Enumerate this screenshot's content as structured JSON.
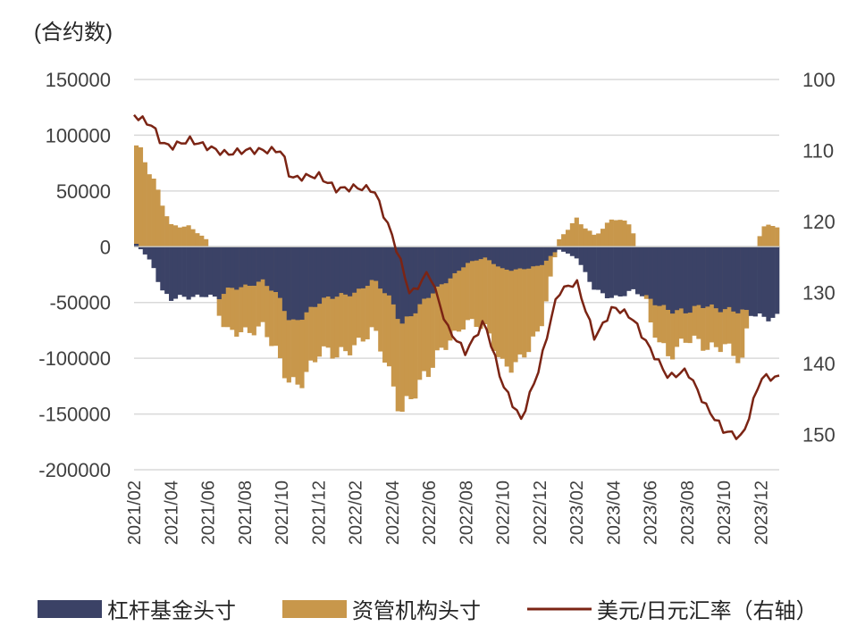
{
  "chart_data": {
    "type": "bar",
    "title": "",
    "left_axis_unit": "(合约数)",
    "left_axis": {
      "ticks": [
        150000,
        100000,
        50000,
        0,
        -50000,
        -100000,
        -150000,
        -200000
      ],
      "tick_labels": [
        "150000",
        "100000",
        "50000",
        "0",
        "-50000",
        "-100000",
        "-150000",
        "-200000"
      ],
      "range": [
        -200000,
        150000
      ]
    },
    "right_axis": {
      "ticks": [
        100,
        110,
        120,
        130,
        140,
        150
      ],
      "tick_labels": [
        "100",
        "110",
        "120",
        "130",
        "140",
        "150"
      ],
      "range": [
        100,
        155
      ],
      "inverted": true
    },
    "x_tick_labels": [
      "2021/02",
      "2021/04",
      "2021/06",
      "2021/08",
      "2021/10",
      "2021/12",
      "2022/02",
      "2022/04",
      "2022/06",
      "2022/08",
      "2022/10",
      "2022/12",
      "2023/02",
      "2023/04",
      "2023/06",
      "2023/08",
      "2023/10",
      "2023/12"
    ],
    "colors": {
      "leveraged": "#3b4266",
      "asset_manager": "#c8974b",
      "usdjpy": "#7b2414",
      "grid": "#d9d9d9",
      "axis_text": "#404040"
    },
    "series": [
      {
        "name": "杠杆基金头寸",
        "type": "bar",
        "axis": "left",
        "points": [
          [
            "2021/02",
            5000
          ],
          [
            "2021/03",
            -15000
          ],
          [
            "2021/03.5",
            -40000
          ],
          [
            "2021/04",
            -48000
          ],
          [
            "2021/05",
            -45000
          ],
          [
            "2021/06",
            -42000
          ],
          [
            "2021/06.5",
            -48000
          ],
          [
            "2021/07",
            -40000
          ],
          [
            "2021/08",
            -35000
          ],
          [
            "2021/09",
            -30000
          ],
          [
            "2021/10",
            -50000
          ],
          [
            "2021/10.5",
            -70000
          ],
          [
            "2021/11",
            -62000
          ],
          [
            "2021/12",
            -50000
          ],
          [
            "2022/01",
            -45000
          ],
          [
            "2022/02",
            -40000
          ],
          [
            "2022/03",
            -30000
          ],
          [
            "2022/04",
            -50000
          ],
          [
            "2022/04.5",
            -68000
          ],
          [
            "2022/05",
            -60000
          ],
          [
            "2022/06",
            -45000
          ],
          [
            "2022/07",
            -30000
          ],
          [
            "2022/08",
            -15000
          ],
          [
            "2022/09",
            -10000
          ],
          [
            "2022/10",
            -20000
          ],
          [
            "2022/11",
            -20000
          ],
          [
            "2022/12",
            -18000
          ],
          [
            "2022/12.5",
            -10000
          ],
          [
            "2023/01",
            -2000
          ],
          [
            "2023/02",
            -10000
          ],
          [
            "2023/03",
            -40000
          ],
          [
            "2023/04",
            -45000
          ],
          [
            "2023/05",
            -40000
          ],
          [
            "2023/06",
            -48000
          ],
          [
            "2023/07",
            -55000
          ],
          [
            "2023/08",
            -60000
          ],
          [
            "2023/09",
            -52000
          ],
          [
            "2023/10",
            -55000
          ],
          [
            "2023/11",
            -60000
          ],
          [
            "2023/12",
            -62000
          ]
        ]
      },
      {
        "name": "资管机构头寸",
        "type": "bar",
        "axis": "left",
        "points": [
          [
            "2021/02",
            95000
          ],
          [
            "2021/03",
            60000
          ],
          [
            "2021/03.5",
            40000
          ],
          [
            "2021/04",
            20000
          ],
          [
            "2021/05",
            18000
          ],
          [
            "2021/06",
            5000
          ],
          [
            "2021/06.5",
            -55000
          ],
          [
            "2021/07",
            -80000
          ],
          [
            "2021/08",
            -75000
          ],
          [
            "2021/09",
            -70000
          ],
          [
            "2021/10",
            -110000
          ],
          [
            "2021/10.5",
            -125000
          ],
          [
            "2021/11",
            -118000
          ],
          [
            "2021/12",
            -95000
          ],
          [
            "2022/01",
            -100000
          ],
          [
            "2022/02",
            -85000
          ],
          [
            "2022/03",
            -75000
          ],
          [
            "2022/04",
            -125000
          ],
          [
            "2022/04.5",
            -145000
          ],
          [
            "2022/05",
            -130000
          ],
          [
            "2022/06",
            -115000
          ],
          [
            "2022/07",
            -85000
          ],
          [
            "2022/08",
            -65000
          ],
          [
            "2022/09",
            -75000
          ],
          [
            "2022/10",
            -105000
          ],
          [
            "2022/11",
            -100000
          ],
          [
            "2022/12",
            -80000
          ],
          [
            "2022/12.5",
            -35000
          ],
          [
            "2023/01",
            5000
          ],
          [
            "2023/02",
            25000
          ],
          [
            "2023/03",
            10000
          ],
          [
            "2023/04",
            25000
          ],
          [
            "2023/05",
            20000
          ],
          [
            "2023/06",
            -70000
          ],
          [
            "2023/07",
            -95000
          ],
          [
            "2023/08",
            -85000
          ],
          [
            "2023/09",
            -90000
          ],
          [
            "2023/10",
            -85000
          ],
          [
            "2023/11",
            -108000
          ],
          [
            "2023/12",
            18000
          ]
        ]
      },
      {
        "name": "美元/日元汇率（右轴）",
        "type": "line",
        "axis": "right",
        "points": [
          [
            "2021/02",
            105
          ],
          [
            "2021/03",
            106.5
          ],
          [
            "2021/03.5",
            109
          ],
          [
            "2021/04",
            109.5
          ],
          [
            "2021/05",
            108.5
          ],
          [
            "2021/06",
            109.5
          ],
          [
            "2021/06.5",
            110
          ],
          [
            "2021/07",
            110.5
          ],
          [
            "2021/08",
            110
          ],
          [
            "2021/09",
            110
          ],
          [
            "2021/10",
            110
          ],
          [
            "2021/10.5",
            114
          ],
          [
            "2021/11",
            113.8
          ],
          [
            "2021/12",
            113.5
          ],
          [
            "2022/01",
            115.5
          ],
          [
            "2022/02",
            115.2
          ],
          [
            "2022/03",
            115.5
          ],
          [
            "2022/04",
            122
          ],
          [
            "2022/04.5",
            126
          ],
          [
            "2022/05",
            130.5
          ],
          [
            "2022/06",
            127
          ],
          [
            "2022/07",
            135
          ],
          [
            "2022/08",
            138.5
          ],
          [
            "2022/09",
            134
          ],
          [
            "2022/10",
            143
          ],
          [
            "2022/11",
            148
          ],
          [
            "2022/12",
            140.5
          ],
          [
            "2022/12.5",
            135
          ],
          [
            "2023/01",
            130
          ],
          [
            "2023/02",
            128.5
          ],
          [
            "2023/03",
            136.5
          ],
          [
            "2023/04",
            132
          ],
          [
            "2023/05",
            133.5
          ],
          [
            "2023/06",
            138
          ],
          [
            "2023/07",
            142
          ],
          [
            "2023/08",
            141
          ],
          [
            "2023/09",
            146
          ],
          [
            "2023/10",
            149.5
          ],
          [
            "2023/11",
            150.5
          ],
          [
            "2023/12",
            142
          ]
        ]
      }
    ],
    "legend": [
      "杠杆基金头寸",
      "资管机构头寸",
      "美元/日元汇率（右轴）"
    ],
    "legend_position": "bottom"
  }
}
